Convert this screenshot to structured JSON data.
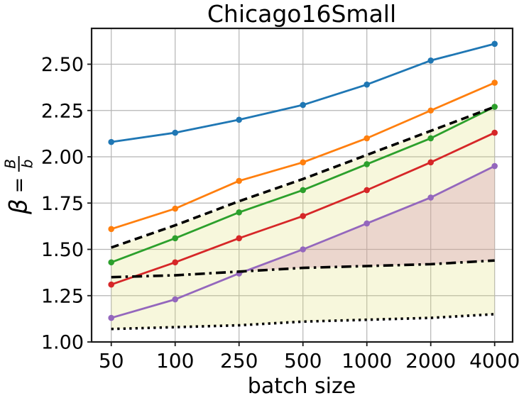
{
  "title": "Chicago16Small",
  "colors": {
    "background": "#ffffff",
    "grid": "#b5b5b5",
    "spine": "#1a1a1a",
    "text": "#000000"
  },
  "chart_data": {
    "type": "line",
    "title": "Chicago16Small",
    "xlabel": "batch size",
    "ylabel": "beta = B/b",
    "ylabel_parts": {
      "symbol": "β",
      "equals": "=",
      "numerator": "B",
      "denominator": "b"
    },
    "x_categories": [
      "50",
      "100",
      "250",
      "500",
      "1000",
      "2000",
      "4000"
    ],
    "ytick_labels": [
      "1.00",
      "1.25",
      "1.50",
      "1.75",
      "2.00",
      "2.25",
      "2.50"
    ],
    "ytick_values": [
      1.0,
      1.25,
      1.5,
      1.75,
      2.0,
      2.25,
      2.5
    ],
    "ylim": [
      1.0,
      2.71
    ],
    "grid": true,
    "legend": "none",
    "series": [
      {
        "name": "blue-line",
        "color": "#1f77b4",
        "style": "solid",
        "marker": true,
        "values": [
          2.08,
          2.13,
          2.2,
          2.28,
          2.39,
          2.52,
          2.61
        ]
      },
      {
        "name": "orange-line",
        "color": "#ff7f0e",
        "style": "solid",
        "marker": true,
        "values": [
          1.61,
          1.72,
          1.87,
          1.97,
          2.1,
          2.25,
          2.4
        ]
      },
      {
        "name": "green-line",
        "color": "#2ca02c",
        "style": "solid",
        "marker": true,
        "values": [
          1.43,
          1.56,
          1.7,
          1.82,
          1.96,
          2.1,
          2.27
        ]
      },
      {
        "name": "red-line",
        "color": "#d62728",
        "style": "solid",
        "marker": true,
        "values": [
          1.31,
          1.43,
          1.56,
          1.68,
          1.82,
          1.97,
          2.13
        ]
      },
      {
        "name": "purple-line",
        "color": "#9467bd",
        "style": "solid",
        "marker": true,
        "values": [
          1.13,
          1.23,
          1.37,
          1.5,
          1.64,
          1.78,
          1.95
        ]
      },
      {
        "name": "dashed-black-line",
        "color": "#000000",
        "style": "dashed",
        "marker": false,
        "values": [
          1.51,
          1.63,
          1.76,
          1.88,
          2.01,
          2.14,
          2.27
        ]
      },
      {
        "name": "dashdot-black-line",
        "color": "#000000",
        "style": "dashdot",
        "marker": false,
        "values": [
          1.35,
          1.36,
          1.38,
          1.4,
          1.41,
          1.42,
          1.44
        ]
      },
      {
        "name": "dotted-black-line",
        "color": "#000000",
        "style": "dotted",
        "marker": false,
        "values": [
          1.07,
          1.08,
          1.09,
          1.11,
          1.12,
          1.13,
          1.15
        ]
      }
    ],
    "fills": [
      {
        "name": "yellow-band",
        "upper": "dashed-black-line",
        "lower": "dotted-black-line",
        "color": "rgba(220,220,110,0.24)",
        "only_where_upper_above": false
      },
      {
        "name": "pink-band",
        "upper": "purple-line",
        "lower": "dashdot-black-line",
        "color": "rgba(210,140,172,0.30)",
        "only_where_upper_above": true
      }
    ]
  }
}
